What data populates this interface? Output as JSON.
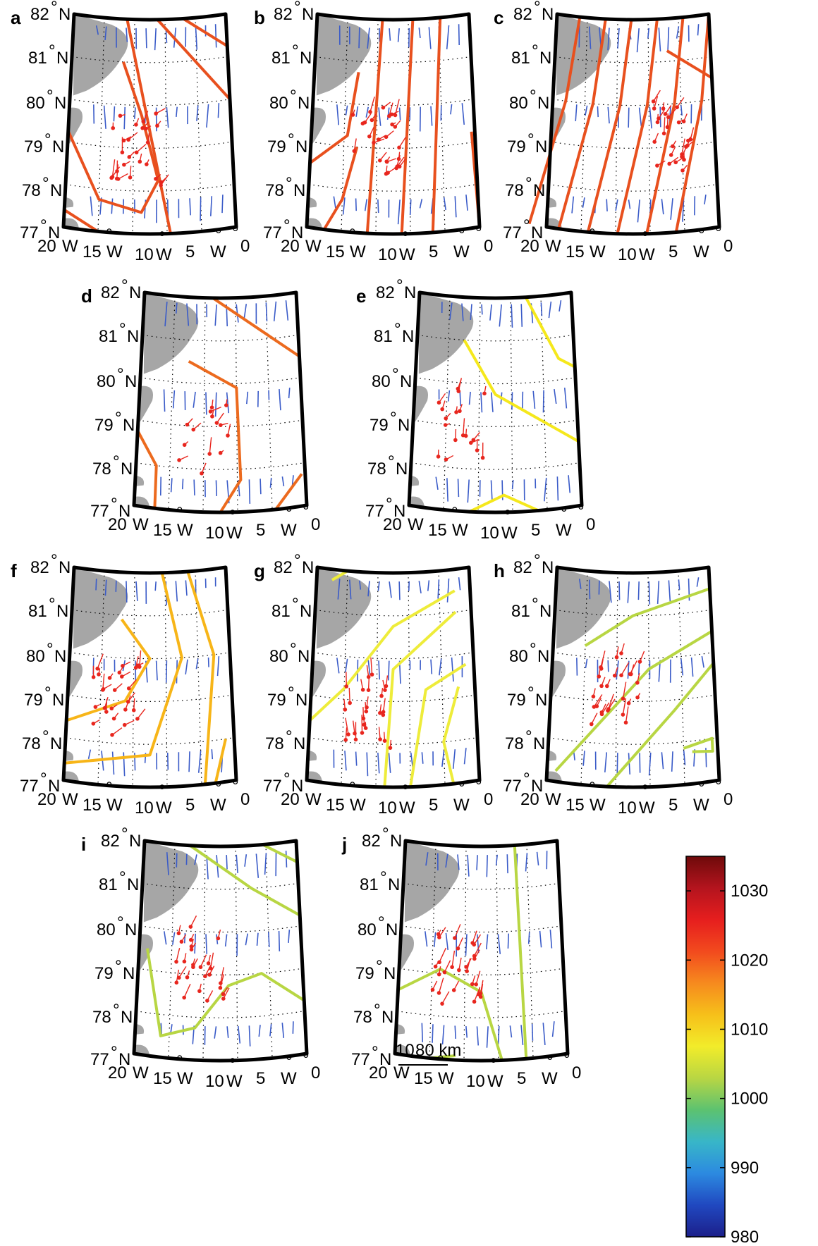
{
  "panels": [
    {
      "letter": "a",
      "contour_color": "#e8501e"
    },
    {
      "letter": "b",
      "contour_color": "#e8501e"
    },
    {
      "letter": "c",
      "contour_color": "#e8501e"
    },
    {
      "letter": "d",
      "contour_color": "#ec6a1e"
    },
    {
      "letter": "e",
      "contour_color": "#f5e81c"
    },
    {
      "letter": "f",
      "contour_color": "#f7b518"
    },
    {
      "letter": "g",
      "contour_color": "#eeec3a"
    },
    {
      "letter": "h",
      "contour_color": "#b8d643"
    },
    {
      "letter": "i",
      "contour_color": "#b8d643"
    },
    {
      "letter": "j",
      "contour_color": "#b8d643"
    }
  ],
  "axes": {
    "lat_degrees": [
      "82",
      "81",
      "80",
      "79",
      "78",
      "77"
    ],
    "lat_suffix": "N",
    "lon_labels": [
      "20",
      "W",
      "15",
      "W",
      "10",
      "W",
      "5",
      "W",
      "0"
    ]
  },
  "degree_symbol": "°",
  "scale_bar": {
    "left_label": "10",
    "right_label": "80 km"
  },
  "colorbar": {
    "ticks": [
      "1030",
      "1020",
      "1010",
      "1000",
      "990",
      "980"
    ],
    "range": [
      980,
      1035
    ],
    "colors": [
      "#6e0a0a",
      "#b4141e",
      "#e61e1e",
      "#f24a1e",
      "#f68a1e",
      "#f6c01a",
      "#f2ec2a",
      "#b8d643",
      "#5cc270",
      "#38b6c8",
      "#2c8ae0",
      "#2048c0",
      "#1c1f8a"
    ]
  },
  "colors": {
    "land": "#a6a6a6",
    "wind_arrow": "#3a5bc8",
    "buoy": "#e8261e",
    "frame": "#000000"
  }
}
